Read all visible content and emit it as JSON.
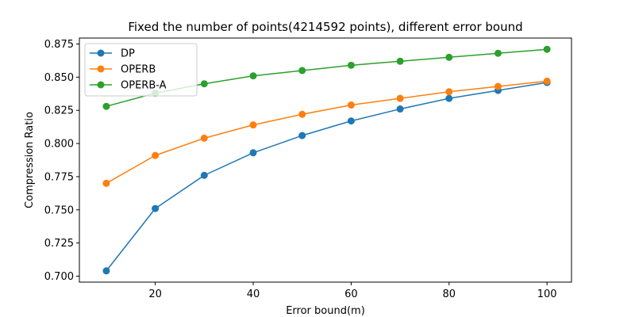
{
  "chart_data": {
    "type": "line",
    "title": "Fixed the number of points(4214592 points), different error bound",
    "xlabel": "Error bound(m)",
    "ylabel": "Compression Ratio",
    "x": [
      10,
      20,
      30,
      40,
      50,
      60,
      70,
      80,
      90,
      100
    ],
    "xlim": [
      4.5,
      105
    ],
    "ylim": [
      0.6955,
      0.8795
    ],
    "xticks": [
      20,
      40,
      60,
      80,
      100
    ],
    "yticks": [
      0.7,
      0.725,
      0.75,
      0.775,
      0.8,
      0.825,
      0.85,
      0.875
    ],
    "xtick_labels": [
      "20",
      "40",
      "60",
      "80",
      "100"
    ],
    "ytick_labels": [
      "0.700",
      "0.725",
      "0.750",
      "0.775",
      "0.800",
      "0.825",
      "0.850",
      "0.875"
    ],
    "grid": false,
    "legend_position": "top-left",
    "series": [
      {
        "name": "DP",
        "color": "#1f77b4",
        "marker": "circle",
        "values": [
          0.704,
          0.751,
          0.776,
          0.793,
          0.806,
          0.817,
          0.826,
          0.834,
          0.84,
          0.846
        ]
      },
      {
        "name": "OPERB",
        "color": "#ff7f0e",
        "marker": "circle",
        "values": [
          0.77,
          0.791,
          0.804,
          0.814,
          0.822,
          0.829,
          0.834,
          0.839,
          0.843,
          0.847
        ]
      },
      {
        "name": "OPERB-A",
        "color": "#2ca02c",
        "marker": "circle",
        "values": [
          0.828,
          0.838,
          0.845,
          0.851,
          0.855,
          0.859,
          0.862,
          0.865,
          0.868,
          0.871
        ]
      }
    ]
  }
}
